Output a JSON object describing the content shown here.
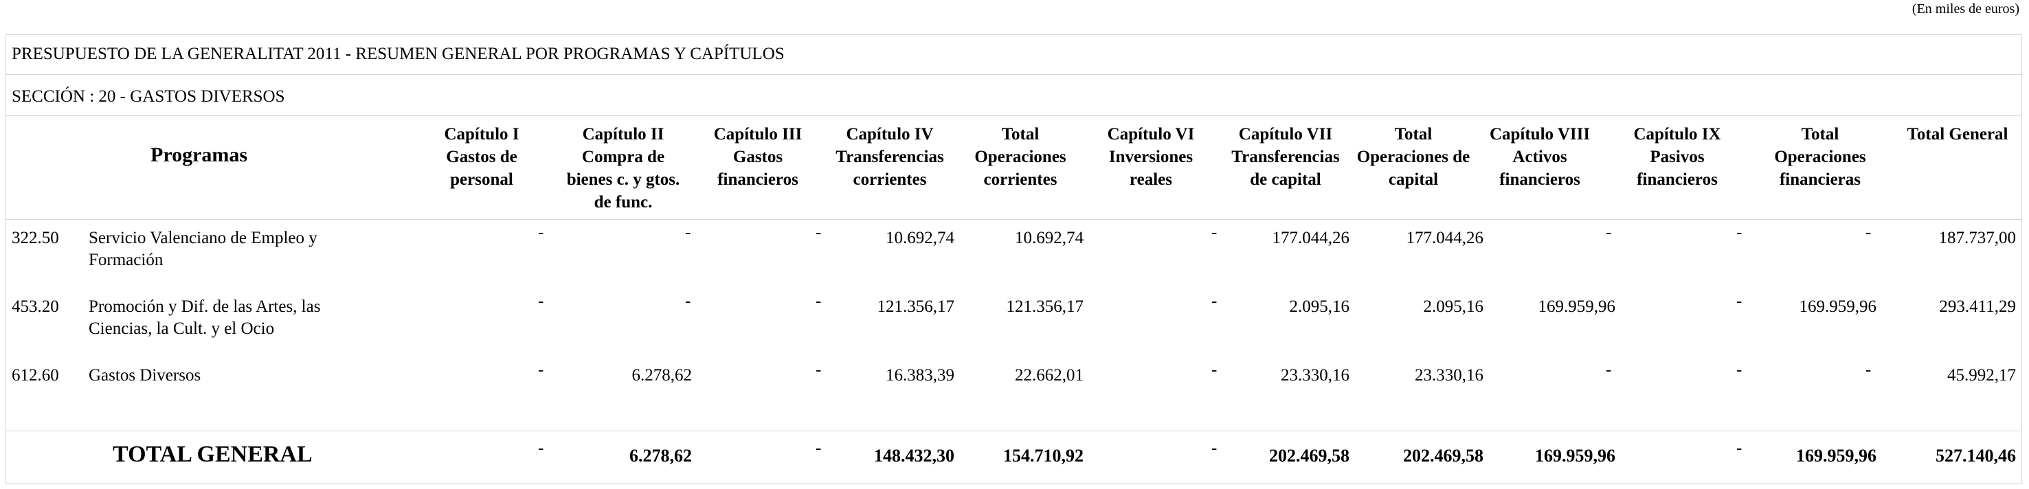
{
  "unit_note": "(En miles de euros)",
  "title": "PRESUPUESTO DE LA GENERALITAT 2011 - RESUMEN GENERAL POR PROGRAMAS Y CAPÍTULOS",
  "section": "SECCIÓN : 20  -  GASTOS DIVERSOS",
  "headers": {
    "programas": "Programas",
    "columns": [
      [
        "Capítulo I",
        "Gastos de",
        "personal"
      ],
      [
        "Capítulo II",
        "Compra de",
        "bienes c. y gtos.",
        "de func."
      ],
      [
        "Capítulo III",
        "Gastos",
        "financieros"
      ],
      [
        "Capítulo IV",
        "Transferencias",
        "corrientes"
      ],
      [
        "Total",
        "Operaciones",
        "corrientes"
      ],
      [
        "Capítulo VI",
        "Inversiones",
        "reales"
      ],
      [
        "Capítulo VII",
        "Transferencias",
        "de capital"
      ],
      [
        "Total",
        "Operaciones de",
        "capital"
      ],
      [
        "Capítulo VIII",
        "Activos",
        "financieros"
      ],
      [
        "Capítulo IX",
        "Pasivos",
        "financieros"
      ],
      [
        "Total",
        "Operaciones",
        "financieras"
      ],
      [
        "Total General"
      ]
    ]
  },
  "rows": [
    {
      "code": "322.50",
      "name": [
        "Servicio Valenciano de Empleo y",
        "Formación"
      ],
      "values": [
        "-",
        "-",
        "-",
        "10.692,74",
        "10.692,74",
        "-",
        "177.044,26",
        "177.044,26",
        "-",
        "-",
        "-",
        "187.737,00"
      ]
    },
    {
      "code": "453.20",
      "name": [
        "Promoción y Dif. de las Artes, las",
        "Ciencias, la Cult. y el Ocio"
      ],
      "values": [
        "-",
        "-",
        "-",
        "121.356,17",
        "121.356,17",
        "-",
        "2.095,16",
        "2.095,16",
        "169.959,96",
        "-",
        "169.959,96",
        "293.411,29"
      ]
    },
    {
      "code": "612.60",
      "name": [
        "Gastos Diversos"
      ],
      "values": [
        "-",
        "6.278,62",
        "-",
        "16.383,39",
        "22.662,01",
        "-",
        "23.330,16",
        "23.330,16",
        "-",
        "-",
        "-",
        "45.992,17"
      ]
    }
  ],
  "total": {
    "label": "TOTAL GENERAL",
    "values": [
      "-",
      "6.278,62",
      "-",
      "148.432,30",
      "154.710,92",
      "-",
      "202.469,58",
      "202.469,58",
      "169.959,96",
      "-",
      "169.959,96",
      "527.140,46"
    ]
  }
}
